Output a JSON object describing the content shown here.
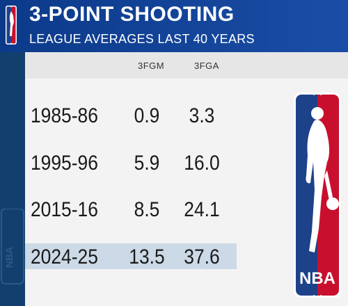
{
  "header": {
    "title": "3-POINT SHOOTING",
    "subtitle": "LEAGUE AVERAGES LAST 40 YEARS"
  },
  "table": {
    "columns": [
      "3FGM",
      "3FGA"
    ],
    "rows": [
      {
        "season": "1985-86",
        "fgm": "0.9",
        "fga": "3.3"
      },
      {
        "season": "1995-96",
        "fgm": "5.9",
        "fga": "16.0"
      },
      {
        "season": "2015-16",
        "fgm": "8.5",
        "fga": "24.1"
      },
      {
        "season": "2024-25",
        "fgm": "13.5",
        "fga": "37.6",
        "highlighted": true
      }
    ]
  },
  "logo": {
    "text": "NBA",
    "primary_blue": "#1d428a",
    "primary_red": "#c8102e"
  },
  "colors": {
    "header_bg": "#1a4da6",
    "stripe_bg": "#123f6e",
    "highlight_row": "#ccd9e6",
    "panel_bg": "#f3f3f3"
  }
}
